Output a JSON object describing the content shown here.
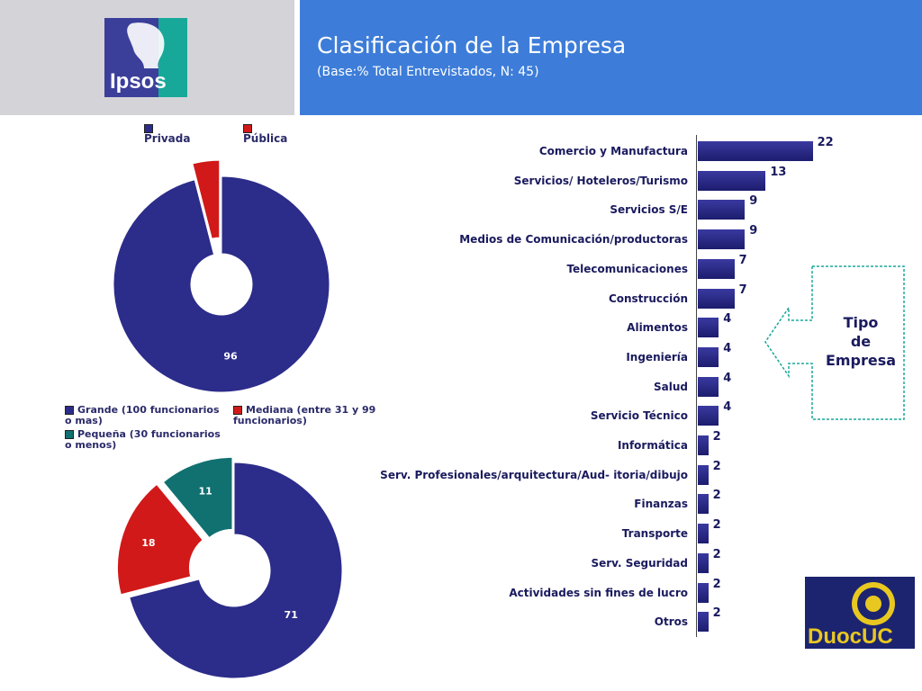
{
  "header": {
    "title": "Clasificación de la Empresa",
    "subtitle": "(Base:% Total Entrevistados, N: 45)"
  },
  "logos": {
    "ipsos": "Ipsos",
    "duoc": "DuocUC"
  },
  "callout": {
    "line1": "Tipo",
    "line2": "de",
    "line3": "Empresa"
  },
  "colors": {
    "navy": "#2c2c8a",
    "red": "#d11919",
    "teal": "#117070",
    "header_blue": "#3d7dd9"
  },
  "chart_data": [
    {
      "type": "pie",
      "variant": "donut",
      "legend": [
        "Privada",
        "Pública"
      ],
      "values": [
        96,
        4
      ],
      "colors": [
        "#2c2c8a",
        "#d11919"
      ],
      "legend_position": "top"
    },
    {
      "type": "pie",
      "variant": "donut",
      "legend": [
        "Grande (100 funcionarios o mas)",
        "Mediana (entre 31 y 99 funcionarios)",
        "Pequeña (30 funcionarios o menos)"
      ],
      "values": [
        71,
        18,
        11
      ],
      "colors": [
        "#2c2c8a",
        "#d11919",
        "#117070"
      ],
      "legend_position": "top"
    },
    {
      "type": "bar",
      "orientation": "horizontal",
      "categories": [
        "Comercio y Manufactura",
        "Servicios/ Hoteleros/Turismo",
        "Servicios S/E",
        "Medios de Comunicación/productoras",
        "Telecomunicaciones",
        "Construcción",
        "Alimentos",
        "Ingeniería",
        "Salud",
        "Servicio Técnico",
        "Informática",
        "Serv. Profesionales/arquitectura/Aud- itoria/dibujo",
        "Finanzas",
        "Transporte",
        "Serv. Seguridad",
        "Actividades sin fines de lucro",
        "Otros"
      ],
      "values": [
        22,
        13,
        9,
        9,
        7,
        7,
        4,
        4,
        4,
        4,
        2,
        2,
        2,
        2,
        2,
        2,
        2
      ],
      "color": "#2c2c8a"
    }
  ]
}
